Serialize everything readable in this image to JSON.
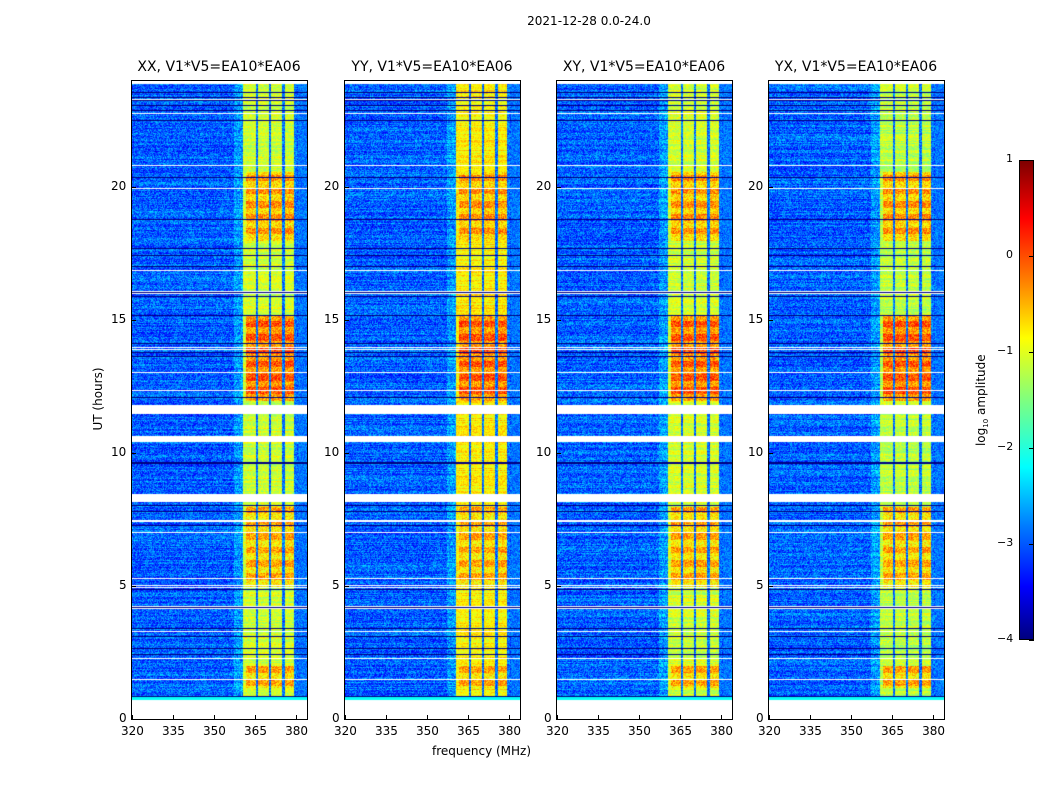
{
  "suptitle": "2021-12-28 0.0-24.0",
  "chart_data": {
    "type": "heatmap",
    "title": "2021-12-28 0.0-24.0",
    "xlabel": "frequency (MHz)",
    "ylabel": "UT (hours)",
    "xlim": [
      320,
      384
    ],
    "ylim": [
      0,
      24
    ],
    "xticks": [
      "320",
      "335",
      "350",
      "365",
      "380"
    ],
    "yticks": [
      "0",
      "5",
      "10",
      "15",
      "20"
    ],
    "panels": [
      {
        "title": "XX, V1*V5=EA10*EA06",
        "band_level": -1.1
      },
      {
        "title": "YY, V1*V5=EA10*EA06",
        "band_level": -0.8
      },
      {
        "title": "XY, V1*V5=EA10*EA06",
        "band_level": -1.1
      },
      {
        "title": "YX, V1*V5=EA10*EA06",
        "band_level": -1.2
      }
    ],
    "background_level": -2.9,
    "data_hours": [
      0.75,
      23.9
    ],
    "bright_band_mhz": [
      360.5,
      380.0
    ],
    "subband_gaps_mhz": [
      365.5,
      370.3,
      375.3,
      379.6
    ],
    "enhanced_hours": [
      [
        1.2,
        2.0,
        -0.6
      ],
      [
        5.0,
        8.0,
        -0.6
      ],
      [
        12.0,
        15.2,
        -0.2
      ],
      [
        18.0,
        20.6,
        -0.5
      ]
    ],
    "flagged_hours": [
      [
        8.2,
        8.5
      ],
      [
        10.45,
        10.65
      ],
      [
        11.5,
        11.8
      ]
    ],
    "colorbar": {
      "label": "log10 amplitude",
      "label_main": "log",
      "label_sub": "10",
      "label_rest": " amplitude",
      "range": [
        -4,
        1
      ],
      "ticks": [
        "1",
        "0",
        "−1",
        "−2",
        "−3",
        "−4"
      ],
      "colormap": "jet"
    }
  }
}
